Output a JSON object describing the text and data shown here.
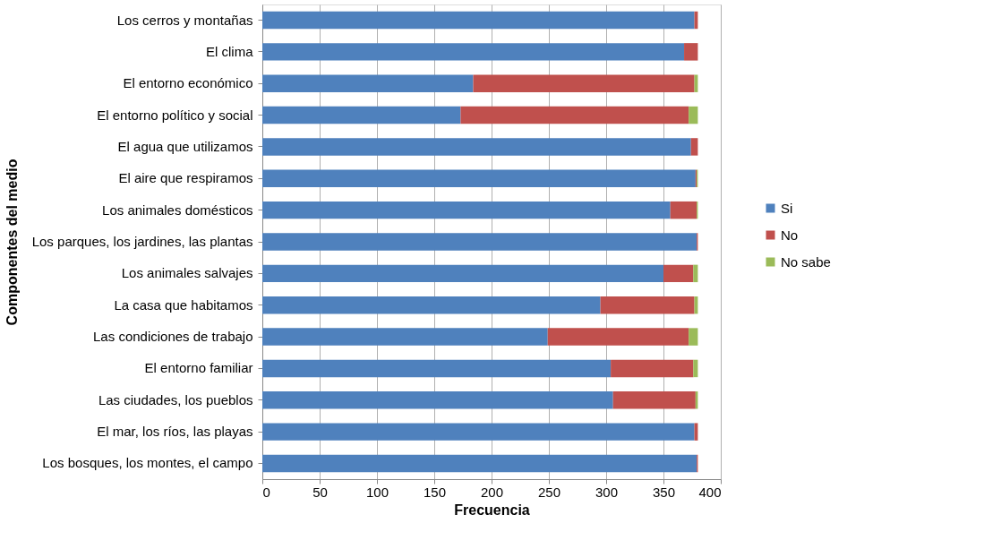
{
  "chart_data": {
    "type": "bar",
    "orientation": "horizontal",
    "stacked": true,
    "xlabel": "Frecuencia",
    "ylabel": "Componentes del medio",
    "categories": [
      "Los cerros y montañas",
      "El clima",
      "El entorno económico",
      "El entorno político y social",
      "El agua que utilizamos",
      "El aire que respiramos",
      "Los animales domésticos",
      "Los parques, los jardines, las plantas",
      "Los animales salvajes",
      "La casa que habitamos",
      "Las condiciones de trabajo",
      "El entorno familiar",
      "Las ciudades, los pueblos",
      "El mar, los ríos, las playas",
      "Los bosques, los montes, el campo"
    ],
    "series": [
      {
        "name": "Si",
        "color": "#4f81bd",
        "values": [
          377,
          368,
          184,
          173,
          374,
          378,
          356,
          379,
          350,
          295,
          249,
          304,
          306,
          377,
          379
        ]
      },
      {
        "name": "No",
        "color": "#c0504d",
        "values": [
          3,
          12,
          193,
          199,
          6,
          1,
          23,
          1,
          26,
          82,
          123,
          72,
          72,
          3,
          1
        ]
      },
      {
        "name": "No sabe",
        "color": "#9bbb59",
        "values": [
          0,
          0,
          3,
          8,
          0,
          1,
          1,
          0,
          4,
          3,
          8,
          4,
          2,
          0,
          0
        ]
      }
    ],
    "xlim": [
      0,
      400
    ],
    "xticks": [
      0,
      50,
      100,
      150,
      200,
      250,
      300,
      350,
      400
    ],
    "grid": "x",
    "legend": "right"
  }
}
